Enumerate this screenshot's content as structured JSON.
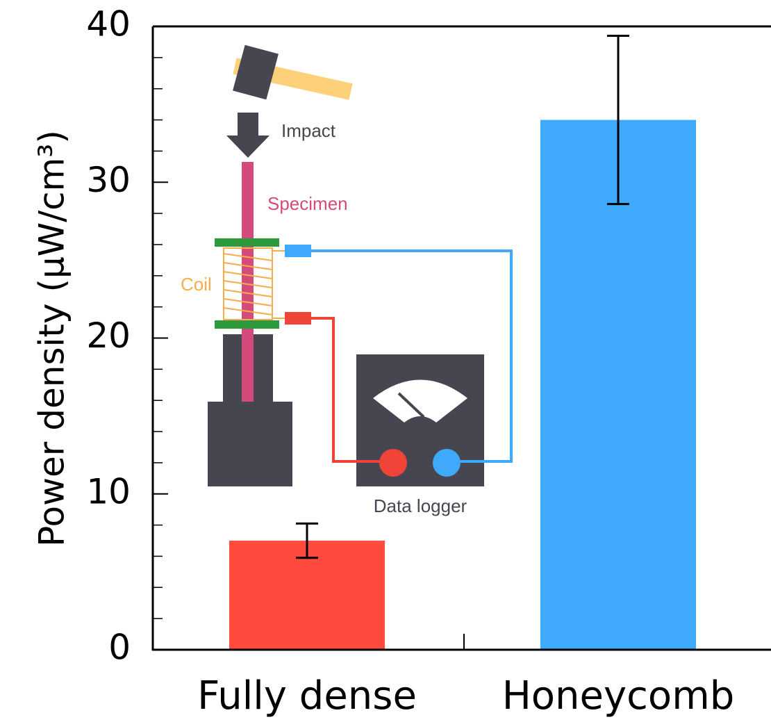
{
  "chart_data": {
    "type": "bar",
    "y_label": "Power density (μW/cm³)",
    "categories": [
      "Fully dense",
      "Honeycomb"
    ],
    "values": [
      7.0,
      34.0
    ],
    "errors": [
      1.1,
      5.4
    ],
    "colors": [
      "#ff4b3e",
      "#3fa9fc"
    ],
    "ylim": [
      0,
      40
    ],
    "yticks": [
      0,
      10,
      20,
      30,
      40
    ],
    "yminor": [
      2,
      4,
      6,
      8,
      12,
      14,
      16,
      18,
      22,
      24,
      26,
      28,
      32,
      34,
      36,
      38
    ],
    "inset_labels": [
      "Impact",
      "Specimen",
      "Coil",
      "Data logger"
    ]
  }
}
